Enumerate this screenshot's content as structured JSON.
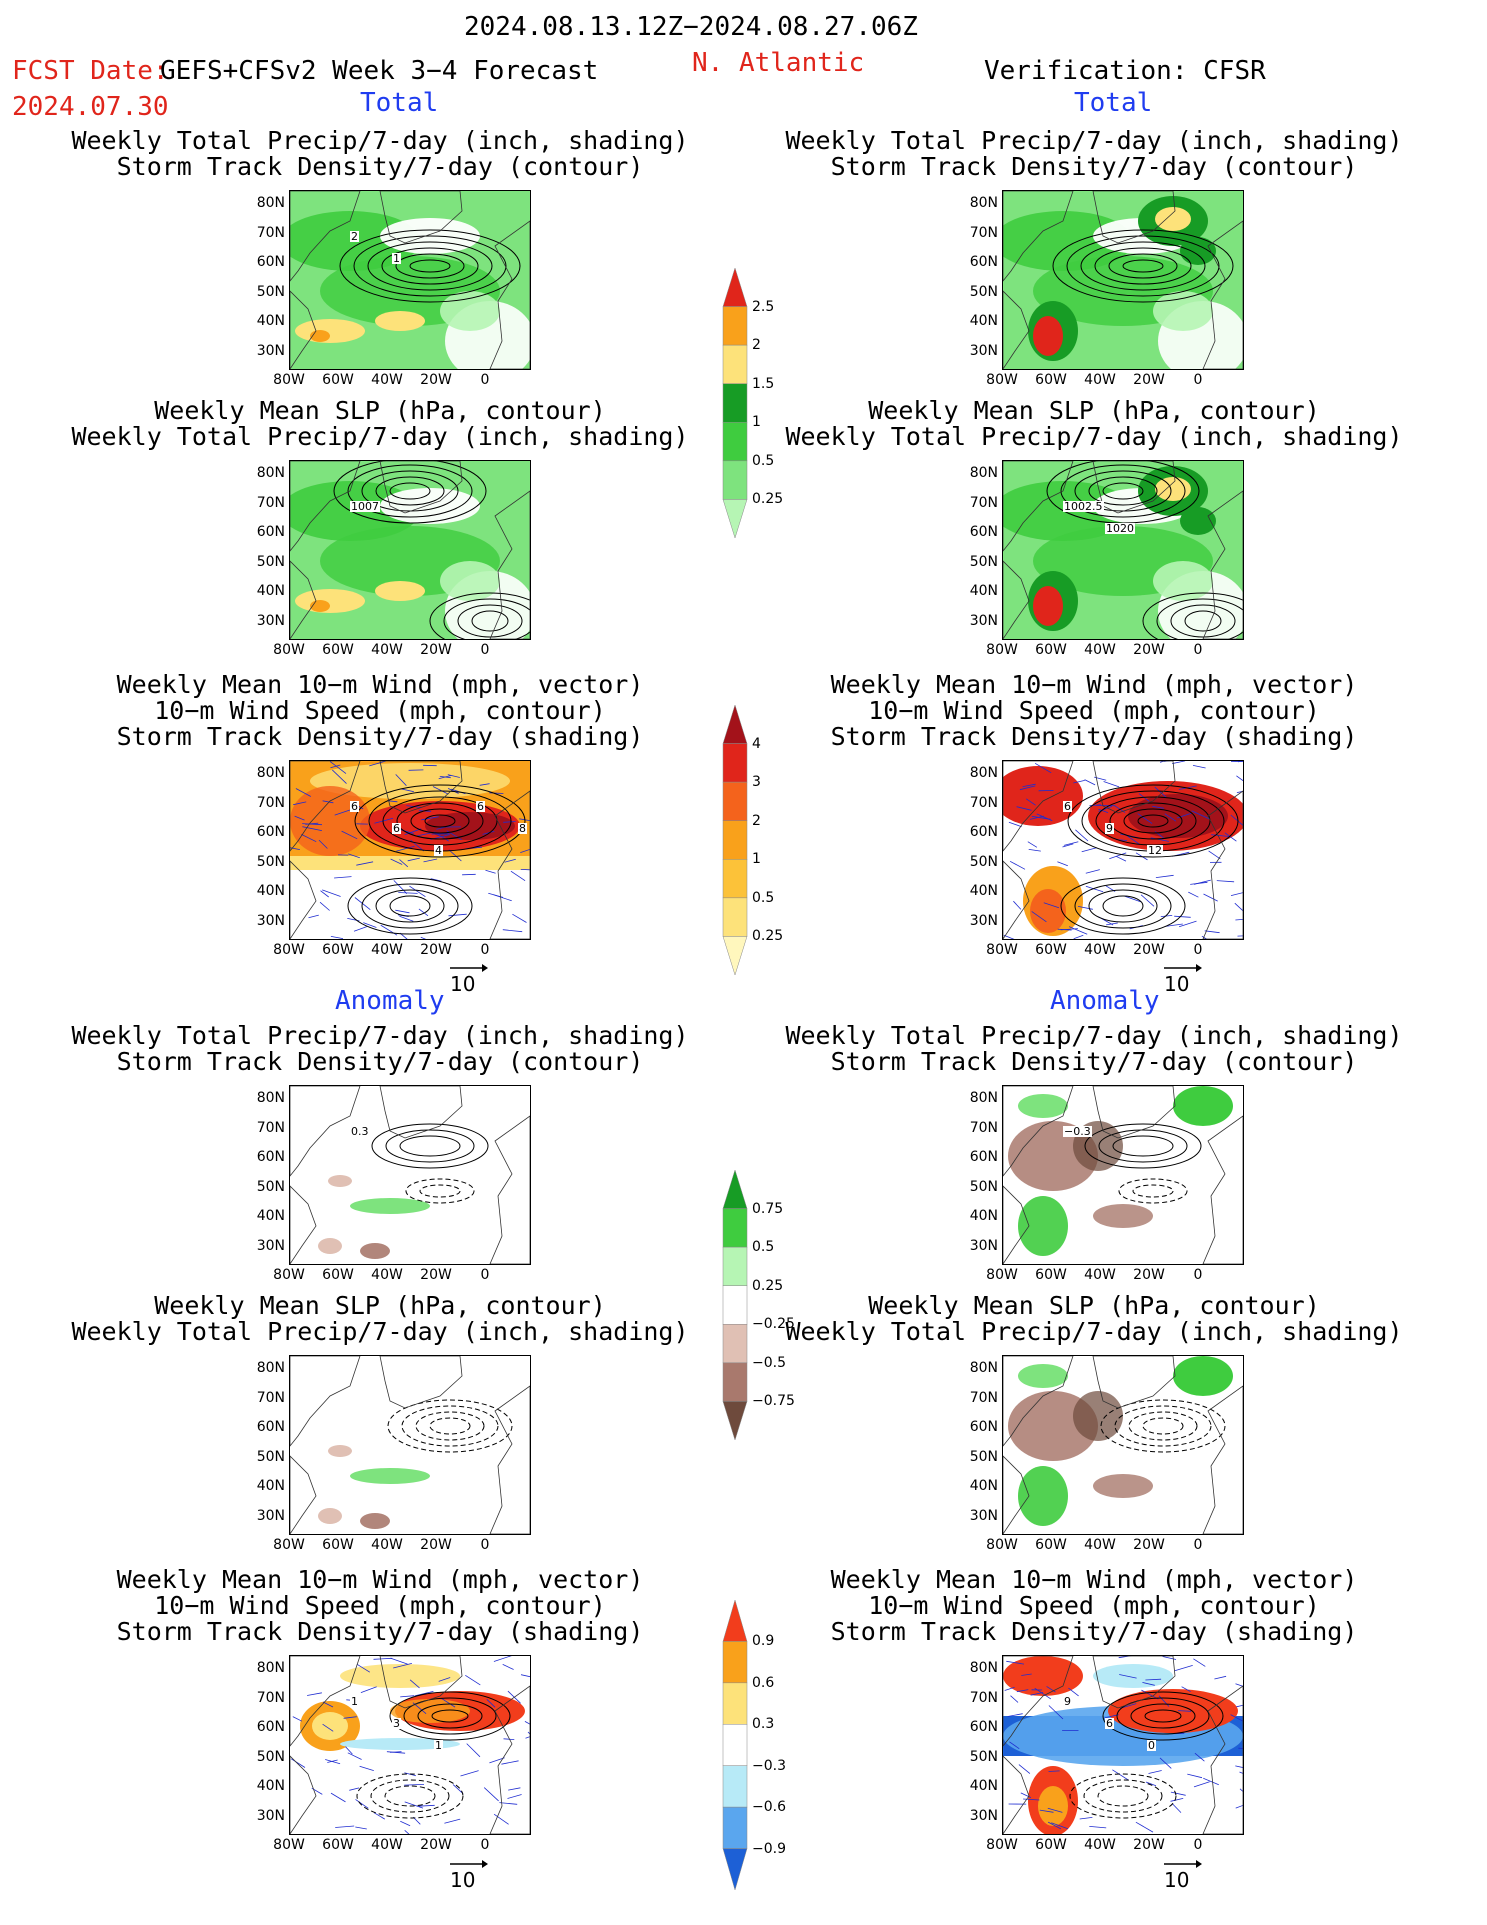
{
  "header": {
    "period": "2024.08.13.12Z−2024.08.27.06Z",
    "fcst_label": "FCST Date:",
    "model": "GEFS+CFSv2 Week 3−4 Forecast",
    "fcst_date": "2024.07.30",
    "region": "N. Atlantic",
    "verification": "Verification: CFSR"
  },
  "sections": {
    "total": "Total",
    "anomaly": "Anomaly"
  },
  "titles": {
    "precip_track": [
      "Weekly Total Precip/7-day (inch, shading)",
      "Storm Track Density/7-day (contour)"
    ],
    "slp_precip": [
      "Weekly Mean SLP (hPa, contour)",
      "Weekly Total Precip/7-day (inch, shading)"
    ],
    "wind": [
      "Weekly Mean 10−m Wind (mph, vector)",
      "10−m Wind Speed (mph, contour)",
      "Storm Track Density/7-day (shading)"
    ]
  },
  "axes": {
    "lat": [
      "80N",
      "70N",
      "60N",
      "50N",
      "40N",
      "30N"
    ],
    "lon": [
      "80W",
      "60W",
      "40W",
      "20W",
      "0"
    ]
  },
  "vector_scale": "10",
  "contour_labels": {
    "fc_precip_track": [
      "2",
      "1"
    ],
    "fc_slp": [
      "1007"
    ],
    "obs_slp": [
      "1002.5",
      "1020"
    ],
    "fc_wind": [
      "6",
      "6",
      "4",
      "6",
      "8"
    ],
    "obs_wind": [
      "6",
      "9",
      "12"
    ],
    "obs_precip_track_anom": [
      "−0.3"
    ],
    "fc_precip_track_anom": [
      "0.3"
    ],
    "fc_wind_anom": [
      "1",
      "3",
      "1"
    ],
    "obs_wind_anom": [
      "9",
      "6",
      "0"
    ]
  },
  "colorbars": {
    "precip_total": {
      "labels": [
        "2.5",
        "2",
        "1.5",
        "1",
        "0.5",
        "0.25"
      ],
      "colors": [
        "#e0251b",
        "#f9a11b",
        "#fde27a",
        "#179c25",
        "#3fcc3f",
        "#7ee37e",
        "#b6f5b4"
      ]
    },
    "track_total": {
      "labels": [
        "4",
        "3",
        "2",
        "1",
        "0.5",
        "0.25"
      ],
      "colors": [
        "#a3121a",
        "#e0251b",
        "#f4631c",
        "#f9a11b",
        "#fcc239",
        "#fde27a",
        "#fff7bd"
      ]
    },
    "precip_anom": {
      "labels": [
        "0.75",
        "0.5",
        "0.25",
        "−0.25",
        "−0.5",
        "−0.75"
      ],
      "colors": [
        "#179c25",
        "#3fcc3f",
        "#b6f5b4",
        "#ffffff",
        "#e0c0b4",
        "#a9796d",
        "#6e4a3c"
      ]
    },
    "track_anom": {
      "labels": [
        "0.9",
        "0.6",
        "0.3",
        "−0.3",
        "−0.6",
        "−0.9"
      ],
      "colors": [
        "#f23d1c",
        "#f9a11b",
        "#fde27a",
        "#ffffff",
        "#b7eaf7",
        "#5aa6ee",
        "#1d60d6"
      ]
    }
  }
}
